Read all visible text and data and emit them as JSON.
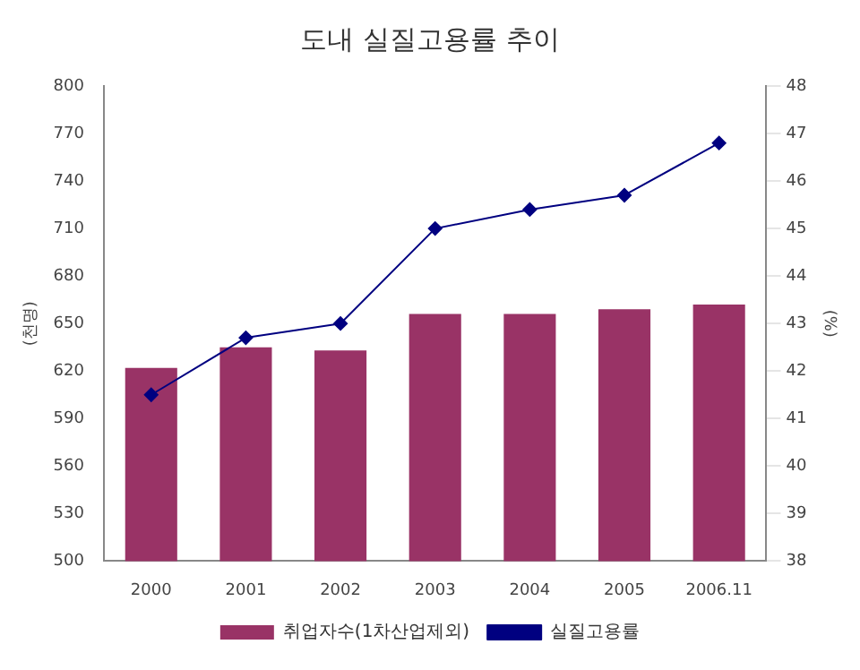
{
  "chart_data": {
    "type": "bar",
    "title": "도내 실질고용률 추이",
    "ylabel": "(천명)",
    "y2label": "(%)",
    "categories": [
      "2000",
      "2001",
      "2002",
      "2003",
      "2004",
      "2005",
      "2006.11"
    ],
    "series": [
      {
        "name": "취업자수(1차산업제외)",
        "color": "#993366",
        "values": [
          622,
          635,
          633,
          656,
          656,
          659,
          662
        ]
      },
      {
        "name": "실질고용률",
        "type": "line",
        "axis": "y2",
        "color": "#000080",
        "marker": "diamond",
        "values": [
          41.5,
          42.7,
          43.0,
          45.0,
          45.4,
          45.7,
          46.8
        ]
      }
    ],
    "ylim": [
      500,
      800
    ],
    "yticks": [
      500,
      530,
      560,
      590,
      620,
      650,
      680,
      710,
      740,
      770,
      800
    ],
    "y2lim": [
      38,
      48
    ],
    "y2ticks": [
      38,
      39,
      40,
      41,
      42,
      43,
      44,
      45,
      46,
      47,
      48
    ],
    "grid": false,
    "legend": "bottom"
  }
}
